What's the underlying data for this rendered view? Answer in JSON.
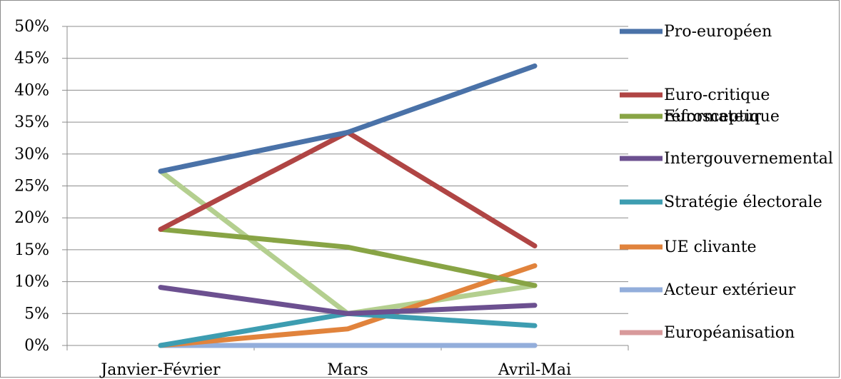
{
  "chart_data": {
    "type": "line",
    "title": "",
    "xlabel": "",
    "ylabel": "",
    "categories": [
      "Janvier-Février",
      "Mars",
      "Avril-Mai"
    ],
    "ylim": [
      0,
      0.5
    ],
    "y_ticks": [
      "0%",
      "5%",
      "10%",
      "15%",
      "20%",
      "25%",
      "30%",
      "35%",
      "40%",
      "45%",
      "50%"
    ],
    "grid": true,
    "legend_position": "right",
    "series": [
      {
        "name": "Pro-européen",
        "color": "#4a72a8",
        "values": [
          0.273,
          0.334,
          0.438
        ]
      },
      {
        "name": "Euro-critique réformateur",
        "name_lines": [
          "Euro-critique",
          "réformateur"
        ],
        "color": "#b04544",
        "values": [
          0.182,
          0.334,
          0.156
        ]
      },
      {
        "name": "Eurosceptique",
        "color": "#88a445",
        "values": [
          0.182,
          0.154,
          0.094
        ]
      },
      {
        "name": "Intergouvernemental",
        "color": "#6c5090",
        "values": [
          0.091,
          0.05,
          0.063
        ]
      },
      {
        "name": "Stratégie électorale",
        "color": "#3d9db1",
        "values": [
          0.0,
          0.05,
          0.031
        ]
      },
      {
        "name": "UE clivante",
        "color": "#e1833c",
        "values": [
          0.0,
          0.026,
          0.125
        ]
      },
      {
        "name": "Acteur extérieur",
        "color": "#93aedb",
        "values": [
          0.0,
          0.0,
          0.0
        ]
      },
      {
        "name": "Européanisation",
        "color": "#d89a9b",
        "values": [
          0.0,
          0.0,
          0.0
        ]
      },
      {
        "name": "",
        "color": "#b4cf8f",
        "values": [
          0.273,
          0.05,
          0.094
        ]
      }
    ]
  }
}
